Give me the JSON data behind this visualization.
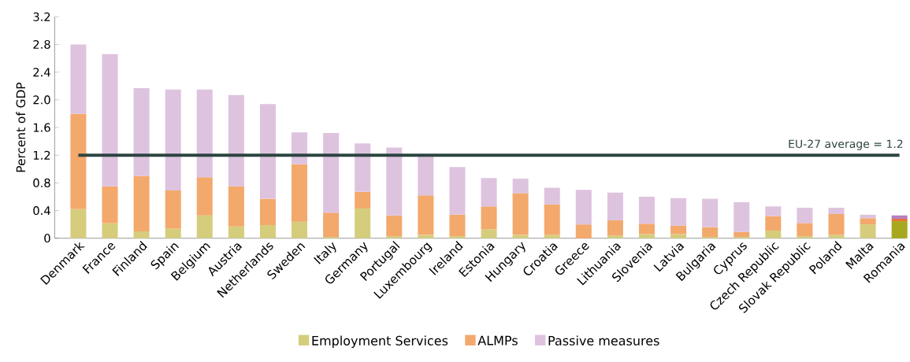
{
  "chart_data": {
    "type": "bar",
    "stacked": true,
    "ylabel": "Percent of GDP",
    "categories": [
      "Denmark",
      "France",
      "Finland",
      "Spain",
      "Belgium",
      "Austria",
      "Netherlands",
      "Sweden",
      "Italy",
      "Germany",
      "Portugal",
      "Luxembourg",
      "Ireland",
      "Estonia",
      "Hungary",
      "Croatia",
      "Greece",
      "Lithuania",
      "Slovenia",
      "Latvia",
      "Bulgaria",
      "Cyprus",
      "Czech Republic",
      "Slovak Republic",
      "Poland",
      "Malta",
      "Romania"
    ],
    "series": [
      {
        "name": "Employment Services",
        "color": "#d5cd7c",
        "colors": [
          "#d5cd7c",
          "#d5cd7c",
          "#d5cd7c",
          "#d5cd7c",
          "#d5cd7c",
          "#d5cd7c",
          "#d5cd7c",
          "#d5cd7c",
          "#d5cd7c",
          "#d5cd7c",
          "#d5cd7c",
          "#d5cd7c",
          "#d5cd7c",
          "#d5cd7c",
          "#d5cd7c",
          "#d5cd7c",
          "#d5cd7c",
          "#d5cd7c",
          "#d5cd7c",
          "#d5cd7c",
          "#d5cd7c",
          "#d5cd7c",
          "#d5cd7c",
          "#d5cd7c",
          "#d5cd7c",
          "#d5cd7c",
          "#a8a820"
        ],
        "values": [
          0.42,
          0.22,
          0.1,
          0.14,
          0.33,
          0.17,
          0.19,
          0.24,
          0.02,
          0.43,
          0.03,
          0.05,
          0.03,
          0.13,
          0.05,
          0.05,
          0,
          0.04,
          0.06,
          0.06,
          0.02,
          0.02,
          0.11,
          0.03,
          0.05,
          0.2,
          0.25
        ]
      },
      {
        "name": "ALMPs",
        "color": "#f3a86c",
        "colors": [
          "#f3a86c",
          "#f3a86c",
          "#f3a86c",
          "#f3a86c",
          "#f3a86c",
          "#f3a86c",
          "#f3a86c",
          "#f3a86c",
          "#f3a86c",
          "#f3a86c",
          "#f3a86c",
          "#f3a86c",
          "#f3a86c",
          "#f3a86c",
          "#f3a86c",
          "#f3a86c",
          "#f3a86c",
          "#f3a86c",
          "#f3a86c",
          "#f3a86c",
          "#f3a86c",
          "#f3a86c",
          "#f3a86c",
          "#f3a86c",
          "#f3a86c",
          "#f3a86c",
          "#e8641e"
        ],
        "values": [
          1.38,
          0.53,
          0.8,
          0.55,
          0.55,
          0.58,
          0.38,
          0.83,
          0.35,
          0.24,
          0.3,
          0.57,
          0.31,
          0.33,
          0.6,
          0.44,
          0.2,
          0.22,
          0.15,
          0.12,
          0.14,
          0.07,
          0.21,
          0.19,
          0.3,
          0.09,
          0.03
        ]
      },
      {
        "name": "Passive measures",
        "color": "#dec3df",
        "colors": [
          "#dec3df",
          "#dec3df",
          "#dec3df",
          "#dec3df",
          "#dec3df",
          "#dec3df",
          "#dec3df",
          "#dec3df",
          "#dec3df",
          "#dec3df",
          "#dec3df",
          "#dec3df",
          "#dec3df",
          "#dec3df",
          "#dec3df",
          "#dec3df",
          "#dec3df",
          "#dec3df",
          "#dec3df",
          "#dec3df",
          "#dec3df",
          "#dec3df",
          "#dec3df",
          "#dec3df",
          "#dec3df",
          "#dec3df",
          "#b97fbf"
        ],
        "values": [
          1.0,
          1.91,
          1.27,
          1.46,
          1.27,
          1.32,
          1.37,
          0.46,
          1.15,
          0.7,
          0.98,
          0.56,
          0.69,
          0.41,
          0.21,
          0.24,
          0.5,
          0.4,
          0.39,
          0.4,
          0.41,
          0.43,
          0.14,
          0.22,
          0.09,
          0.05,
          0.05
        ]
      }
    ],
    "ylim": [
      0,
      3.2
    ],
    "yticks": [
      0,
      0.4,
      0.8,
      1.2,
      1.6,
      {
        "value": 2,
        "label": "2.0"
      },
      2.4,
      2.8,
      3.2
    ],
    "ref_lines": [
      {
        "axis": "y",
        "value": 1.2,
        "label": "EU-27 average = 1.2",
        "color": "#2c4540"
      }
    ],
    "legend": "bottom"
  }
}
